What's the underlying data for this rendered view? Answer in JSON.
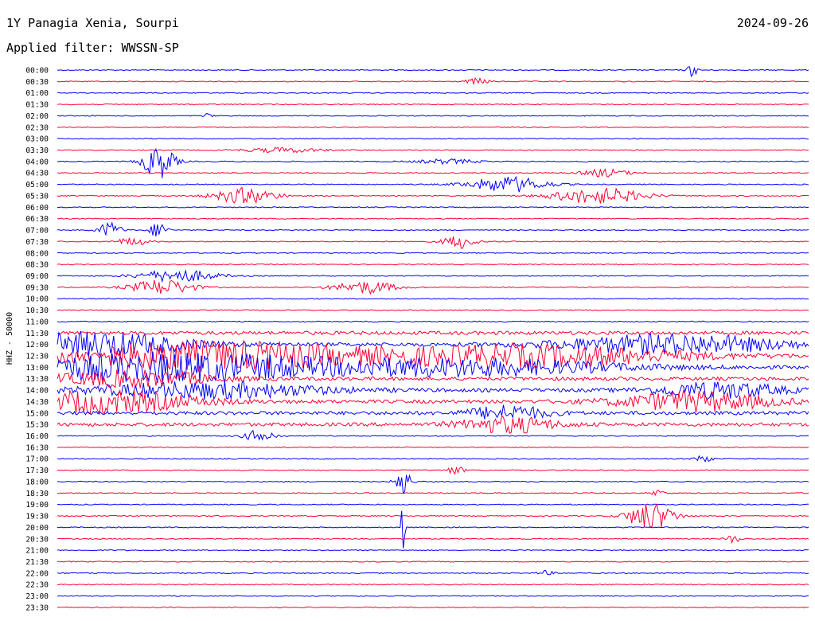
{
  "header": {
    "title": "1Y Panagia Xenia, Sourpi",
    "date": "2024-09-26",
    "filter": "Applied filter: WWSSN-SP"
  },
  "chart_data": {
    "type": "line",
    "ylabel": "HHZ - 50000",
    "row_labels": [
      "00:00",
      "00:30",
      "01:00",
      "01:30",
      "02:00",
      "02:30",
      "03:00",
      "03:30",
      "04:00",
      "04:30",
      "05:00",
      "05:30",
      "06:00",
      "06:30",
      "07:00",
      "07:30",
      "08:00",
      "08:30",
      "09:00",
      "09:30",
      "10:00",
      "10:30",
      "11:00",
      "11:30",
      "12:00",
      "12:30",
      "13:00",
      "13:30",
      "14:00",
      "14:30",
      "15:00",
      "15:30",
      "16:00",
      "16:30",
      "17:00",
      "17:30",
      "18:00",
      "18:30",
      "19:00",
      "19:30",
      "20:00",
      "20:30",
      "21:00",
      "21:30",
      "22:00",
      "22:30",
      "23:00",
      "23:30"
    ],
    "trace_minutes": 30,
    "colors": [
      "#0000ff",
      "#ff0033"
    ],
    "grid": false
  }
}
